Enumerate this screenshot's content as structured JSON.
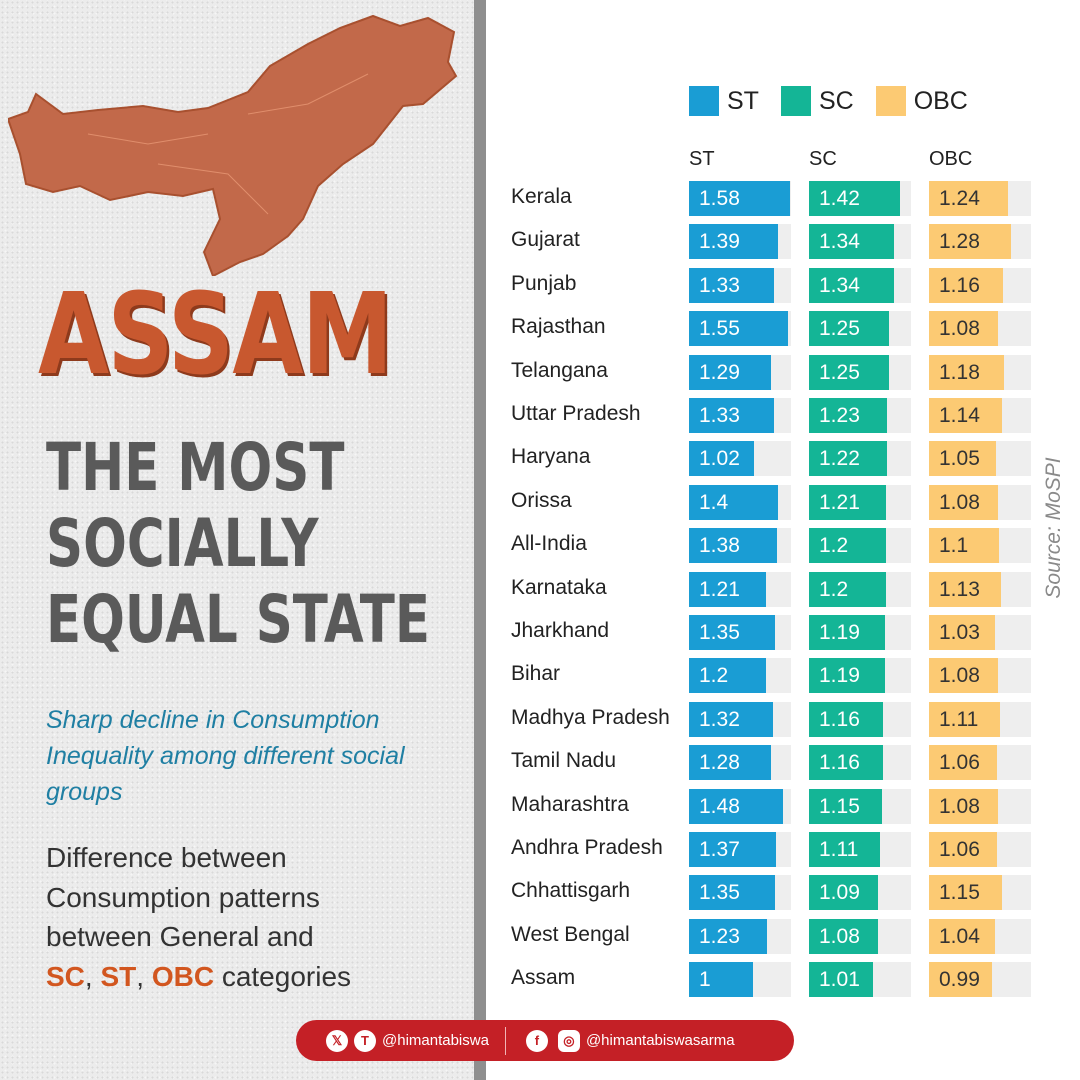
{
  "left": {
    "state_name": "ASSAM",
    "headline": [
      "THE MOST",
      "SOCIALLY",
      "EQUAL STATE"
    ],
    "subtitle": "Sharp decline in Consumption Inequality among different social groups",
    "desc_line1": "Difference between",
    "desc_line2": "Consumption patterns",
    "desc_line3": "between General and",
    "desc_sc": "SC",
    "desc_sep1": ", ",
    "desc_st": "ST",
    "desc_sep2": ", ",
    "desc_obc": "OBC",
    "desc_tail": " categories"
  },
  "source": "Source: MoSPI",
  "footer": {
    "handle1": "@himantabiswa",
    "handle2": "@himantabiswasarma",
    "icons": [
      "x-icon",
      "koo-icon",
      "facebook-icon",
      "instagram-icon"
    ]
  },
  "colors": {
    "ST": "#1a9dd4",
    "SC": "#14b596",
    "OBC": "#fcca73",
    "track": "#eeeeee",
    "accent": "#d2561f"
  },
  "chart_data": {
    "type": "bar",
    "legend": [
      "ST",
      "SC",
      "OBC"
    ],
    "column_headers": [
      "ST",
      "SC",
      "OBC"
    ],
    "categories": [
      "Kerala",
      "Gujarat",
      "Punjab",
      "Rajasthan",
      "Telangana",
      "Uttar Pradesh",
      "Haryana",
      "Orissa",
      "All-India",
      "Karnataka",
      "Jharkhand",
      "Bihar",
      "Madhya Pradesh",
      "Tamil Nadu",
      "Maharashtra",
      "Andhra Pradesh",
      "Chhattisgarh",
      "West Bengal",
      "Assam"
    ],
    "series": [
      {
        "name": "ST",
        "values": [
          1.58,
          1.39,
          1.33,
          1.55,
          1.29,
          1.33,
          1.02,
          1.4,
          1.38,
          1.21,
          1.35,
          1.2,
          1.32,
          1.28,
          1.48,
          1.37,
          1.35,
          1.23,
          1
        ]
      },
      {
        "name": "SC",
        "values": [
          1.42,
          1.34,
          1.34,
          1.25,
          1.25,
          1.23,
          1.22,
          1.21,
          1.2,
          1.2,
          1.19,
          1.19,
          1.16,
          1.16,
          1.15,
          1.11,
          1.09,
          1.08,
          1.01
        ]
      },
      {
        "name": "OBC",
        "values": [
          1.24,
          1.28,
          1.16,
          1.08,
          1.18,
          1.14,
          1.05,
          1.08,
          1.1,
          1.13,
          1.03,
          1.08,
          1.11,
          1.06,
          1.08,
          1.06,
          1.15,
          1.04,
          0.99
        ]
      }
    ]
  }
}
